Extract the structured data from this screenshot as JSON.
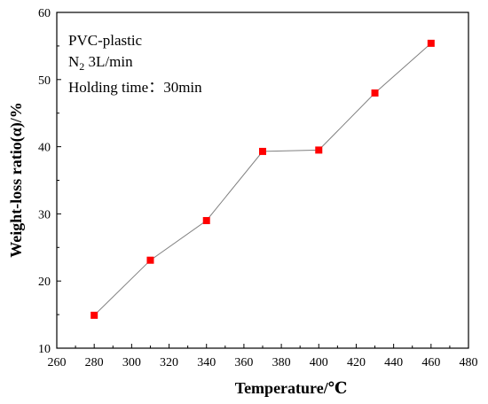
{
  "chart_data": {
    "type": "line",
    "title": "",
    "xlabel": "Temperature/℃",
    "ylabel": "Weight-loss ratio(α)/%",
    "xlim": [
      260,
      480
    ],
    "ylim": [
      10,
      60
    ],
    "x_ticks": [
      260,
      280,
      300,
      320,
      340,
      360,
      380,
      400,
      420,
      440,
      460,
      480
    ],
    "y_ticks": [
      10,
      20,
      30,
      40,
      50,
      60
    ],
    "x_tick_labels": [
      "260",
      "280",
      "300",
      "320",
      "340",
      "360",
      "380",
      "400",
      "420",
      "440",
      "460",
      "480"
    ],
    "y_tick_labels": [
      "10",
      "20",
      "30",
      "40",
      "50",
      "60"
    ],
    "grid": false,
    "marker": "square",
    "series": [
      {
        "x": [
          280,
          310,
          340,
          370,
          400,
          430,
          460
        ],
        "y": [
          14.9,
          23.1,
          29.0,
          39.3,
          39.5,
          48.0,
          55.4
        ],
        "marker_color": "#ff0000",
        "line_color": "#808080"
      }
    ],
    "annotations": {
      "line1": "PVC-plastic",
      "line2_main": "N",
      "line2_sub": "2",
      "line2_rest": " 3L/min",
      "line3": "Holding time：30min"
    }
  }
}
